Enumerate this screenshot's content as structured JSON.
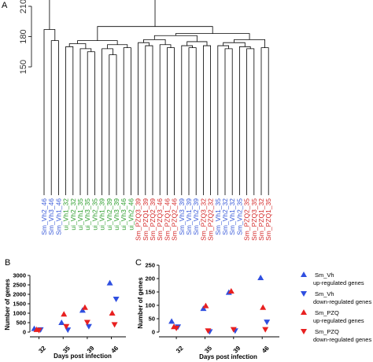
{
  "panels": {
    "a": "A",
    "b": "B",
    "c": "C"
  },
  "chart_data": [
    {
      "type": "dendrogram",
      "ylim": [
        150,
        220
      ],
      "yticks": [
        150,
        180,
        210
      ],
      "leaves": [
        {
          "label": "Sm_Vh2_46",
          "color": "#3a5bd9"
        },
        {
          "label": "Sm_Vh3_46",
          "color": "#3a5bd9"
        },
        {
          "label": "Sm_Vh1_46",
          "color": "#3a5bd9"
        },
        {
          "label": "ui_Vh1_32",
          "color": "#2e9e2e"
        },
        {
          "label": "ui_Vh2_32",
          "color": "#2e9e2e"
        },
        {
          "label": "ui_Vh1_35",
          "color": "#2e9e2e"
        },
        {
          "label": "ui_Vh3_35",
          "color": "#2e9e2e"
        },
        {
          "label": "ui_Vh2_35",
          "color": "#2e9e2e"
        },
        {
          "label": "ui_Vh1_39",
          "color": "#2e9e2e"
        },
        {
          "label": "ui_Vh2_39",
          "color": "#2e9e2e"
        },
        {
          "label": "ui_Vh3_39",
          "color": "#2e9e2e"
        },
        {
          "label": "ui_Vh3_46",
          "color": "#2e9e2e"
        },
        {
          "label": "ui_Vh2_46",
          "color": "#2e9e2e"
        },
        {
          "label": "Sm_PZQ3_39",
          "color": "#d42a2a"
        },
        {
          "label": "Sm_PZQ1_39",
          "color": "#d42a2a"
        },
        {
          "label": "Sm_PZQ2_39",
          "color": "#d42a2a"
        },
        {
          "label": "Sm_PZQ3_46",
          "color": "#d42a2a"
        },
        {
          "label": "Sm_PZQ1_46",
          "color": "#d42a2a"
        },
        {
          "label": "Sm_PZQ2_46",
          "color": "#d42a2a"
        },
        {
          "label": "Sm_Vh3_39",
          "color": "#3a5bd9"
        },
        {
          "label": "Sm_Vh1_39",
          "color": "#3a5bd9"
        },
        {
          "label": "Sm_Vh2_39",
          "color": "#3a5bd9"
        },
        {
          "label": "Sm_PZQ3_32",
          "color": "#d42a2a"
        },
        {
          "label": "Sm_PZQ2_32",
          "color": "#d42a2a"
        },
        {
          "label": "Sm_Vh1_35",
          "color": "#3a5bd9"
        },
        {
          "label": "Sm_Vh2_32",
          "color": "#3a5bd9"
        },
        {
          "label": "Sm_Vh1_32",
          "color": "#3a5bd9"
        },
        {
          "label": "Sm_Vh2_35",
          "color": "#3a5bd9"
        },
        {
          "label": "Sm_PZQ2_35",
          "color": "#d42a2a"
        },
        {
          "label": "Sm_PZQ3_35",
          "color": "#d42a2a"
        },
        {
          "label": "Sm_PZQ1_32",
          "color": "#d42a2a"
        },
        {
          "label": "Sm_PZQ1_35",
          "color": "#d42a2a"
        }
      ],
      "merges": [
        [
          1,
          2,
          176
        ],
        [
          0,
          -1,
          187
        ],
        [
          3,
          4,
          170
        ],
        [
          6,
          7,
          165
        ],
        [
          5,
          -4,
          168
        ],
        [
          -3,
          -5,
          173
        ],
        [
          9,
          10,
          162
        ],
        [
          8,
          -7,
          168
        ],
        [
          11,
          12,
          169
        ],
        [
          -8,
          -9,
          172
        ],
        [
          -6,
          -10,
          176
        ],
        [
          14,
          15,
          171
        ],
        [
          13,
          -12,
          174
        ],
        [
          17,
          18,
          169
        ],
        [
          16,
          -14,
          172
        ],
        [
          -13,
          -15,
          177
        ],
        [
          20,
          21,
          169
        ],
        [
          19,
          -17,
          171
        ],
        [
          22,
          23,
          171
        ],
        [
          -18,
          -19,
          175
        ],
        [
          -16,
          -20,
          181
        ],
        [
          25,
          26,
          168
        ],
        [
          24,
          -22,
          171
        ],
        [
          28,
          29,
          168
        ],
        [
          27,
          -24,
          170
        ],
        [
          -23,
          -25,
          174
        ],
        [
          30,
          31,
          169
        ],
        [
          -26,
          -27,
          177
        ],
        [
          -21,
          -28,
          183
        ],
        [
          -11,
          -29,
          190
        ],
        [
          -2,
          -30,
          222
        ]
      ]
    },
    {
      "type": "scatter",
      "xlabel": "Days post infection",
      "ylabel": "Number of genes",
      "categories": [
        "32",
        "35",
        "39",
        "46"
      ],
      "ylim": [
        0,
        3000
      ],
      "yticks": [
        0,
        500,
        1000,
        1500,
        2000,
        2500,
        3000
      ],
      "series": [
        {
          "name": "Sm_Vh up-regulated genes",
          "color": "#2f4fe0",
          "marker": "up",
          "x": [
            3,
            4,
            5,
            6
          ],
          "values": [
            180,
            500,
            1150,
            2600
          ]
        },
        {
          "name": "Sm_Vh down-regulated genes",
          "color": "#2f4fe0",
          "marker": "down",
          "x": [
            3,
            4,
            5,
            6
          ],
          "values": [
            130,
            120,
            300,
            1750
          ]
        },
        {
          "name": "Sm_PZQ up-regulated genes",
          "color": "#e82020",
          "marker": "up",
          "x": [
            3,
            4,
            5,
            6
          ],
          "values": [
            130,
            950,
            1300,
            1000
          ]
        },
        {
          "name": "Sm_PZQ down-regulated genes",
          "color": "#e82020",
          "marker": "down",
          "x": [
            3,
            4,
            5,
            6
          ],
          "values": [
            100,
            300,
            520,
            400
          ]
        }
      ]
    },
    {
      "type": "scatter",
      "xlabel": "Days post infection",
      "ylabel": "Number of genes",
      "categories": [
        "32",
        "35",
        "39",
        "46"
      ],
      "ylim": [
        0,
        250
      ],
      "yticks": [
        0,
        50,
        100,
        150,
        200,
        250
      ],
      "series": [
        {
          "name": "Sm_Vh up-regulated genes",
          "color": "#2f4fe0",
          "marker": "up",
          "x": [
            3,
            4,
            5,
            6
          ],
          "values": [
            40,
            88,
            148,
            203
          ]
        },
        {
          "name": "Sm_Vh down-regulated genes",
          "color": "#2f4fe0",
          "marker": "down",
          "x": [
            3,
            4,
            5,
            6
          ],
          "values": [
            20,
            2,
            5,
            38
          ]
        },
        {
          "name": "Sm_PZQ up-regulated genes",
          "color": "#e82020",
          "marker": "up",
          "x": [
            3,
            4,
            5,
            6
          ],
          "values": [
            20,
            98,
            153,
            92
          ]
        },
        {
          "name": "Sm_PZQ down-regulated genes",
          "color": "#e82020",
          "marker": "down",
          "x": [
            3,
            4,
            5,
            6
          ],
          "values": [
            15,
            5,
            10,
            10
          ]
        }
      ]
    }
  ],
  "legend": [
    {
      "name": "Sm_Vh",
      "desc": "up-regulated genes",
      "color": "#2f4fe0",
      "marker": "up"
    },
    {
      "name": "Sm_Vh",
      "desc": "down-regulated genes",
      "color": "#2f4fe0",
      "marker": "down"
    },
    {
      "name": "Sm_PZQ",
      "desc": "up-regulated genes",
      "color": "#e82020",
      "marker": "up"
    },
    {
      "name": "Sm_PZQ",
      "desc": "down-regulated genes",
      "color": "#e82020",
      "marker": "down"
    }
  ]
}
